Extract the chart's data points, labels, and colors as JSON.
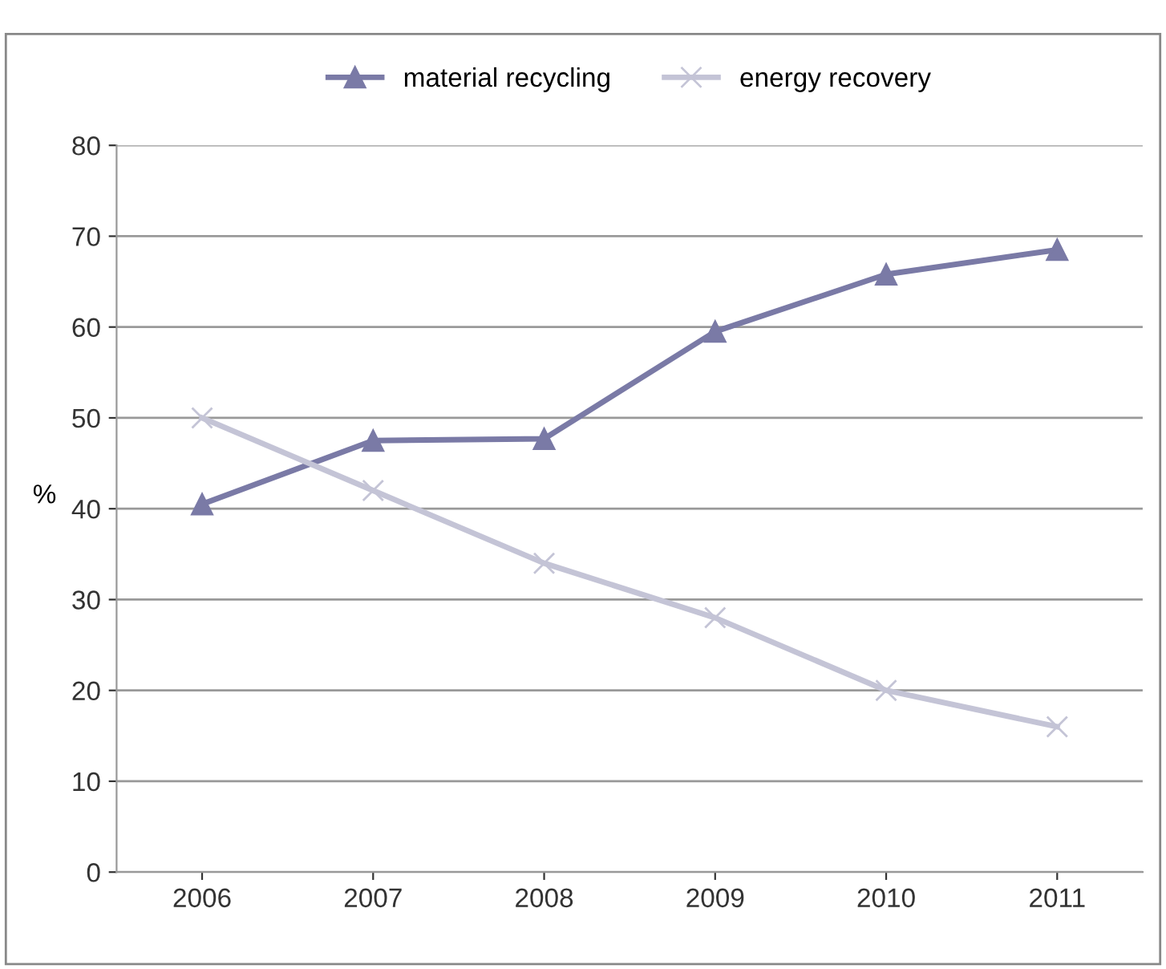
{
  "chart_data": {
    "type": "line",
    "ylabel": "%",
    "categories": [
      "2006",
      "2007",
      "2008",
      "2009",
      "2010",
      "2011"
    ],
    "series": [
      {
        "name": "material recycling",
        "color": "#7a7aa6",
        "marker": "triangle",
        "values": [
          40.5,
          47.5,
          47.7,
          59.5,
          65.8,
          68.5
        ]
      },
      {
        "name": "energy recovery",
        "color": "#c4c4d6",
        "marker": "cross",
        "values": [
          50,
          42,
          34,
          28,
          20,
          16
        ]
      }
    ],
    "ylim": [
      0,
      80
    ],
    "yticks": [
      0,
      10,
      20,
      30,
      40,
      50,
      60,
      70,
      80
    ],
    "grid": "y",
    "legend": "top"
  }
}
